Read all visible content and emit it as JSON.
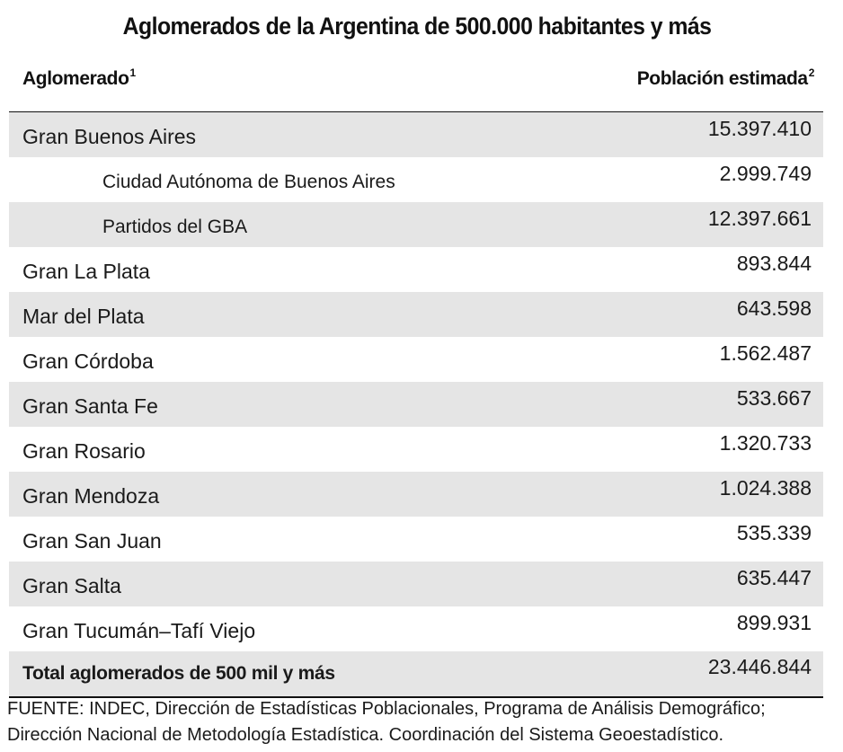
{
  "title": "Aglomerados de la Argentina de 500.000 habitantes y más",
  "header": {
    "col1": "Aglomerado",
    "col1_note": "1",
    "col2": "Población estimada",
    "col2_note": "2"
  },
  "rows": [
    {
      "name": "Gran Buenos Aires",
      "value": "15.397.410"
    },
    {
      "name": "Ciudad Autónoma de Buenos Aires",
      "value": "2.999.749"
    },
    {
      "name": "Partidos del GBA",
      "value": "12.397.661"
    },
    {
      "name": "Gran La Plata",
      "value": "893.844"
    },
    {
      "name": "Mar del Plata",
      "value": "643.598"
    },
    {
      "name": "Gran Córdoba",
      "value": "1.562.487"
    },
    {
      "name": "Gran Santa Fe",
      "value": "533.667"
    },
    {
      "name": "Gran Rosario",
      "value": "1.320.733"
    },
    {
      "name": "Gran Mendoza",
      "value": "1.024.388"
    },
    {
      "name": "Gran San Juan",
      "value": "535.339"
    },
    {
      "name": "Gran Salta",
      "value": "635.447"
    },
    {
      "name": "Gran Tucumán–Tafí Viejo",
      "value": "899.931"
    }
  ],
  "total": {
    "name": "Total aglomerados de 500 mil y más",
    "value": "23.446.844"
  },
  "source": {
    "label": "FUENTE",
    "line1": ": INDEC, Dirección de Estadísticas Poblacionales, Programa de Análisis Demográfico;",
    "line2": "Dirección Nacional de Metodología Estadística. Coordinación del Sistema Geoestadístico."
  }
}
